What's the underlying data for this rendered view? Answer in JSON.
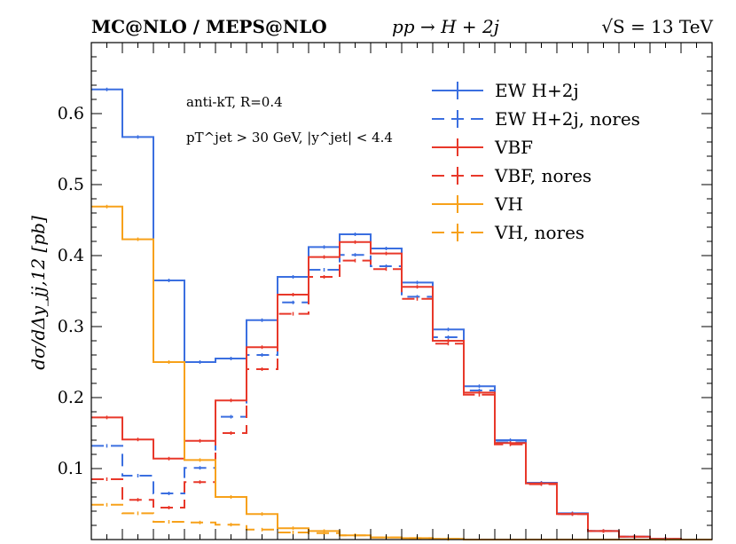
{
  "header": {
    "left": "MC@NLO / MEPS@NLO",
    "middle": "pp → H + 2j",
    "right": "√S = 13 TeV"
  },
  "annotations": {
    "line1": "anti-kT, R=0.4",
    "line2": "pT^jet > 30 GeV, |y^jet| < 4.4"
  },
  "chart_data": {
    "type": "line",
    "title": "",
    "xlabel": "",
    "ylabel": "dσ/dΔy_jj,12 [pb]",
    "xlim": [
      0,
      10
    ],
    "ylim": [
      0,
      0.7
    ],
    "yticks": [
      0.1,
      0.2,
      0.3,
      0.4,
      0.5,
      0.6
    ],
    "ytick_labels": [
      "0.1",
      "0.2",
      "0.3",
      "0.4",
      "0.5",
      "0.6"
    ],
    "x_edges": [
      0,
      0.5,
      1,
      1.5,
      2,
      2.5,
      3,
      3.5,
      4,
      4.5,
      5,
      5.5,
      6,
      6.5,
      7,
      7.5,
      8,
      8.5,
      9,
      9.5,
      10
    ],
    "legend_position": "top-right",
    "series": [
      {
        "name": "EW H+2j",
        "color": "#3b6fe0",
        "dash": "solid",
        "values": [
          0.634,
          0.567,
          0.365,
          0.25,
          0.255,
          0.309,
          0.37,
          0.412,
          0.43,
          0.41,
          0.362,
          0.296,
          0.216,
          0.14,
          0.08,
          0.037,
          0.012,
          0.004,
          0.001,
          0.0
        ]
      },
      {
        "name": "EW H+2j, nores",
        "color": "#3b6fe0",
        "dash": "dashed",
        "values": [
          0.132,
          0.09,
          0.065,
          0.101,
          0.173,
          0.26,
          0.334,
          0.38,
          0.401,
          0.385,
          0.342,
          0.285,
          0.21,
          0.137,
          0.079,
          0.036,
          0.012,
          0.004,
          0.001,
          0.0
        ]
      },
      {
        "name": "VBF",
        "color": "#e8382a",
        "dash": "solid",
        "values": [
          0.172,
          0.141,
          0.114,
          0.139,
          0.196,
          0.271,
          0.345,
          0.398,
          0.419,
          0.403,
          0.356,
          0.28,
          0.207,
          0.136,
          0.079,
          0.036,
          0.012,
          0.004,
          0.001,
          0.0
        ]
      },
      {
        "name": "VBF, nores",
        "color": "#e8382a",
        "dash": "dashed",
        "values": [
          0.085,
          0.056,
          0.045,
          0.081,
          0.15,
          0.24,
          0.318,
          0.37,
          0.393,
          0.381,
          0.339,
          0.276,
          0.204,
          0.134,
          0.078,
          0.036,
          0.012,
          0.004,
          0.001,
          0.0
        ]
      },
      {
        "name": "VH",
        "color": "#f7a11a",
        "dash": "solid",
        "values": [
          0.469,
          0.423,
          0.25,
          0.112,
          0.06,
          0.036,
          0.016,
          0.012,
          0.006,
          0.003,
          0.002,
          0.001,
          0.0,
          0.0,
          0.0,
          0.0,
          0.0,
          0.0,
          0.0,
          0.0
        ]
      },
      {
        "name": "VH, nores",
        "color": "#f7a11a",
        "dash": "dashed",
        "values": [
          0.049,
          0.037,
          0.025,
          0.024,
          0.021,
          0.014,
          0.01,
          0.009,
          0.006,
          0.003,
          0.002,
          0.001,
          0.0,
          0.0,
          0.0,
          0.0,
          0.0,
          0.0,
          0.0,
          0.0
        ]
      }
    ]
  }
}
